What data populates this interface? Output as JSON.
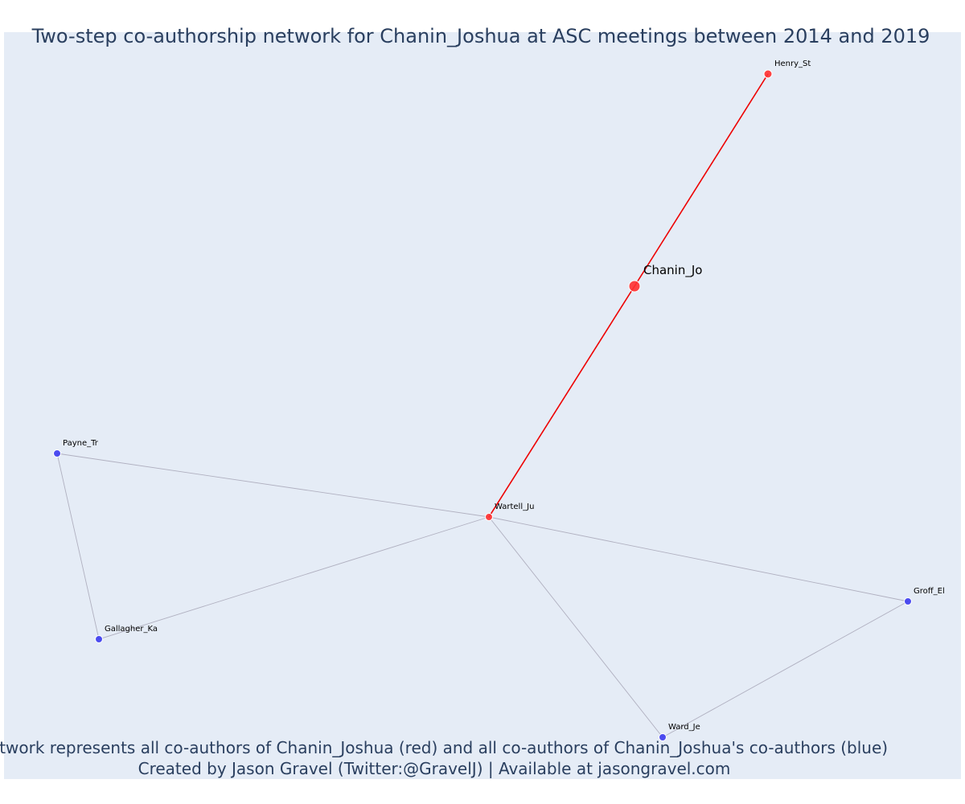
{
  "title": "Two-step co-authorship network for Chanin_Joshua at ASC meetings between 2014 and 2019",
  "caption_line1": "Network represents all co-authors of Chanin_Joshua (red) and all co-authors of Chanin_Joshua's co-authors (blue)",
  "caption_line2": "Created by Jason Gravel (Twitter:@GravelJ) | Available at jasongravel.com",
  "colors": {
    "background": "#e5ecf6",
    "red_node": "#ff3030",
    "blue_node": "#3b3bf0",
    "red_edge": "#ee0000",
    "grey_edge": "#b0b0c0",
    "text": "#2a3f5f"
  },
  "chart_data": {
    "type": "network",
    "nodes": [
      {
        "id": "Chanin_Jo",
        "label": "Chanin_Jo",
        "group": "red",
        "focal": true
      },
      {
        "id": "Henry_St",
        "label": "Henry_St",
        "group": "red"
      },
      {
        "id": "Wartell_Ju",
        "label": "Wartell_Ju",
        "group": "red"
      },
      {
        "id": "Payne_Tr",
        "label": "Payne_Tr",
        "group": "blue"
      },
      {
        "id": "Gallagher_Ka",
        "label": "Gallagher_Ka",
        "group": "blue"
      },
      {
        "id": "Groff_El",
        "label": "Groff_El",
        "group": "blue"
      },
      {
        "id": "Ward_Je",
        "label": "Ward_Je",
        "group": "blue"
      }
    ],
    "edges": [
      {
        "source": "Henry_St",
        "target": "Chanin_Jo",
        "group": "red"
      },
      {
        "source": "Chanin_Jo",
        "target": "Wartell_Ju",
        "group": "red"
      },
      {
        "source": "Payne_Tr",
        "target": "Wartell_Ju",
        "group": "grey"
      },
      {
        "source": "Payne_Tr",
        "target": "Gallagher_Ka",
        "group": "grey"
      },
      {
        "source": "Gallagher_Ka",
        "target": "Wartell_Ju",
        "group": "grey"
      },
      {
        "source": "Wartell_Ju",
        "target": "Groff_El",
        "group": "grey"
      },
      {
        "source": "Wartell_Ju",
        "target": "Ward_Je",
        "group": "grey"
      },
      {
        "source": "Groff_El",
        "target": "Ward_Je",
        "group": "grey"
      }
    ],
    "grid": false,
    "axes": false
  }
}
